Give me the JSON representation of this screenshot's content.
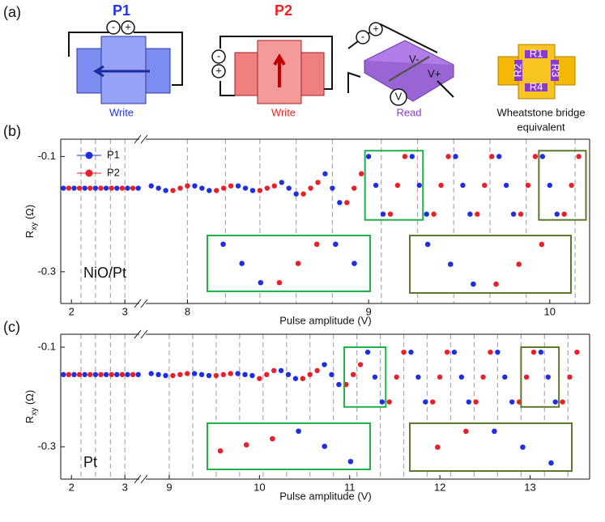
{
  "panel_a": {
    "label": "(a)",
    "p1": {
      "title": "P1",
      "caption": "Write",
      "plus": "+",
      "minus": "-"
    },
    "p2": {
      "title": "P2",
      "caption": "Write",
      "plus": "+",
      "minus": "-"
    },
    "read": {
      "caption": "Read",
      "plus": "+",
      "minus": "-",
      "v_minus": "V-",
      "v_plus": "V+",
      "meter": "V"
    },
    "bridge": {
      "caption_line1": "Wheatstone bridge",
      "caption_line2": "equivalent",
      "resistors": [
        "R1",
        "R2",
        "R3",
        "R4"
      ]
    }
  },
  "chart_data": [
    {
      "type": "scatter",
      "panel_label": "(b)",
      "annotation": "NiO/Pt",
      "x_label": "Pulse amplitude (V)",
      "y_label": {
        "main": "R",
        "sub": "xy",
        "unit": " (Ω)"
      },
      "ylim": [
        -0.355,
        -0.07
      ],
      "yticks": [
        -0.1,
        -0.3
      ],
      "x_segments": [
        {
          "xlim": [
            1.8,
            3.27
          ],
          "xticks": [
            2,
            3
          ],
          "dashed_lines": [
            2.18,
            2.45,
            2.73,
            3.0
          ]
        },
        {
          "xlim": [
            7.77,
            10.22
          ],
          "xticks": [
            8,
            9,
            10
          ],
          "dashed_lines": [
            8.0,
            8.21,
            8.4,
            8.6,
            8.8,
            9.07,
            9.27,
            9.47,
            9.67,
            9.87,
            10.14
          ]
        }
      ],
      "legend": "upper left",
      "series": [
        {
          "name": "P1",
          "color": "#1f2fe0",
          "x": [
            1.85,
            2.05,
            2.25,
            2.45,
            2.65,
            2.85,
            3.05,
            3.25,
            7.8,
            7.84,
            7.88,
            8.04,
            8.08,
            8.12,
            8.28,
            8.32,
            8.36,
            8.52,
            8.56,
            8.6,
            8.76,
            8.8,
            8.84,
            9.0,
            9.04,
            9.08,
            9.24,
            9.28,
            9.32,
            9.48,
            9.52,
            9.56,
            9.72,
            9.76,
            9.8,
            9.96,
            10.0,
            10.04
          ],
          "values": [
            -0.155,
            -0.155,
            -0.155,
            -0.155,
            -0.155,
            -0.155,
            -0.155,
            -0.155,
            -0.151,
            -0.155,
            -0.159,
            -0.151,
            -0.155,
            -0.159,
            -0.151,
            -0.155,
            -0.159,
            -0.145,
            -0.155,
            -0.165,
            -0.13,
            -0.155,
            -0.18,
            -0.1,
            -0.15,
            -0.2,
            -0.1,
            -0.15,
            -0.2,
            -0.1,
            -0.15,
            -0.2,
            -0.1,
            -0.15,
            -0.2,
            -0.1,
            -0.15,
            -0.2
          ]
        },
        {
          "name": "P2",
          "color": "#e8202a",
          "x": [
            1.95,
            2.15,
            2.35,
            2.55,
            2.75,
            2.95,
            3.15,
            7.92,
            7.96,
            8.0,
            8.16,
            8.2,
            8.24,
            8.4,
            8.44,
            8.48,
            8.64,
            8.68,
            8.72,
            8.88,
            8.92,
            8.96,
            9.12,
            9.16,
            9.2,
            9.36,
            9.4,
            9.44,
            9.6,
            9.64,
            9.68,
            9.84,
            9.88,
            9.92,
            10.08,
            10.12,
            10.16
          ],
          "values": [
            -0.155,
            -0.155,
            -0.155,
            -0.155,
            -0.155,
            -0.155,
            -0.155,
            -0.159,
            -0.155,
            -0.151,
            -0.159,
            -0.155,
            -0.151,
            -0.159,
            -0.155,
            -0.151,
            -0.165,
            -0.155,
            -0.145,
            -0.18,
            -0.155,
            -0.13,
            -0.2,
            -0.15,
            -0.1,
            -0.2,
            -0.15,
            -0.1,
            -0.2,
            -0.15,
            -0.1,
            -0.2,
            -0.15,
            -0.1,
            -0.2,
            -0.15,
            -0.1
          ]
        }
      ],
      "insets": [
        {
          "color": "#22b04b",
          "xlim": [
            8.98,
            9.3
          ],
          "ylim": [
            -0.21,
            -0.09
          ]
        },
        {
          "color": "#5a7a30",
          "xlim": [
            9.94,
            10.2
          ],
          "ylim": [
            -0.21,
            -0.09
          ]
        }
      ]
    },
    {
      "type": "scatter",
      "panel_label": "(c)",
      "annotation": "Pt",
      "x_label": "Pulse amplitude (V)",
      "y_label": {
        "main": "R",
        "sub": "xy",
        "unit": " (Ω)"
      },
      "ylim": [
        -0.365,
        -0.074
      ],
      "yticks": [
        -0.1,
        -0.3
      ],
      "x_segments": [
        {
          "xlim": [
            1.8,
            3.27
          ],
          "xticks": [
            2,
            3
          ],
          "dashed_lines": [
            2.18,
            2.45,
            2.73,
            3.0
          ]
        },
        {
          "xlim": [
            8.74,
            13.66
          ],
          "xticks": [
            9,
            10,
            11,
            12,
            13
          ],
          "dashed_lines": [
            9.0,
            9.26,
            9.52,
            9.78,
            10.04,
            10.3,
            10.56,
            10.82,
            11.08,
            11.34,
            11.6,
            11.86,
            12.12,
            12.38,
            12.64,
            12.9,
            13.16,
            13.42
          ]
        }
      ],
      "series": [
        {
          "name": "P1",
          "color": "#1f2fe0",
          "x": [
            1.85,
            2.05,
            2.25,
            2.45,
            2.65,
            2.85,
            3.05,
            3.25,
            8.8,
            8.88,
            8.96,
            9.28,
            9.36,
            9.44,
            9.76,
            9.84,
            9.92,
            10.24,
            10.32,
            10.4,
            10.72,
            10.8,
            10.88,
            11.2,
            11.28,
            11.36,
            11.68,
            11.76,
            11.84,
            12.16,
            12.24,
            12.32,
            12.64,
            12.72,
            12.8,
            13.12,
            13.2,
            13.28
          ],
          "values": [
            -0.155,
            -0.155,
            -0.155,
            -0.155,
            -0.155,
            -0.155,
            -0.155,
            -0.155,
            -0.153,
            -0.155,
            -0.157,
            -0.153,
            -0.155,
            -0.157,
            -0.153,
            -0.155,
            -0.157,
            -0.147,
            -0.155,
            -0.163,
            -0.135,
            -0.155,
            -0.175,
            -0.11,
            -0.16,
            -0.21,
            -0.11,
            -0.16,
            -0.21,
            -0.11,
            -0.16,
            -0.21,
            -0.11,
            -0.16,
            -0.21,
            -0.11,
            -0.16,
            -0.21
          ]
        },
        {
          "name": "P2",
          "color": "#e8202a",
          "x": [
            1.95,
            2.15,
            2.35,
            2.55,
            2.75,
            2.95,
            3.15,
            9.04,
            9.12,
            9.2,
            9.52,
            9.6,
            9.68,
            10.0,
            10.08,
            10.16,
            10.48,
            10.56,
            10.64,
            10.96,
            11.04,
            11.12,
            11.44,
            11.52,
            11.6,
            11.92,
            12.0,
            12.08,
            12.4,
            12.48,
            12.56,
            12.88,
            12.96,
            13.04,
            13.36,
            13.44,
            13.52
          ],
          "values": [
            -0.155,
            -0.155,
            -0.155,
            -0.155,
            -0.155,
            -0.155,
            -0.155,
            -0.157,
            -0.155,
            -0.153,
            -0.157,
            -0.155,
            -0.153,
            -0.163,
            -0.155,
            -0.147,
            -0.163,
            -0.155,
            -0.147,
            -0.175,
            -0.155,
            -0.135,
            -0.21,
            -0.16,
            -0.11,
            -0.21,
            -0.16,
            -0.11,
            -0.21,
            -0.16,
            -0.11,
            -0.21,
            -0.16,
            -0.11,
            -0.21,
            -0.16,
            -0.11
          ]
        }
      ],
      "insets": [
        {
          "color": "#22b04b",
          "xlim": [
            10.94,
            11.4
          ],
          "ylim": [
            -0.22,
            -0.1
          ]
        },
        {
          "color": "#5a7a30",
          "xlim": [
            12.9,
            13.32
          ],
          "ylim": [
            -0.22,
            -0.1
          ]
        }
      ]
    }
  ]
}
